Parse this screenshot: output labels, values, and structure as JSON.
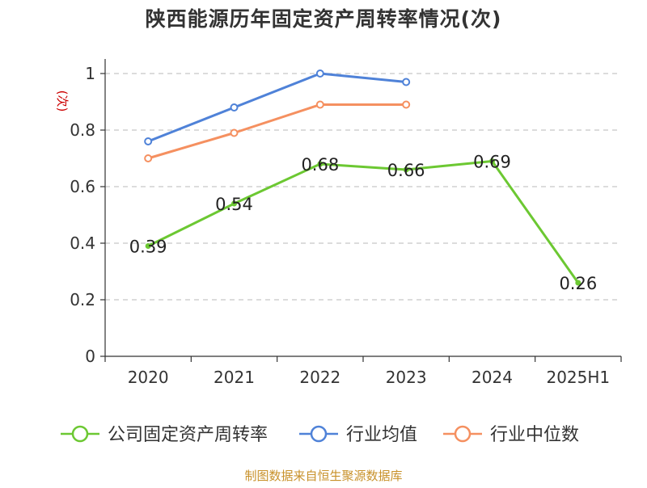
{
  "title": "陕西能源历年固定资产周转率情况(次)",
  "footer": "制图数据来自恒生聚源数据库",
  "colors": {
    "company": "#6cc832",
    "industry_avg": "#4f82d8",
    "industry_median": "#f59060",
    "grid": "#c8c8c8",
    "axis": "#333333",
    "ylabel": "#cc0000",
    "title": "#333333",
    "footer": "#c8912a"
  },
  "chart_data": {
    "type": "line",
    "title": "陕西能源历年固定资产周转率情况(次)",
    "ylabel": "(次)",
    "xlabel": "",
    "categories": [
      "2020",
      "2021",
      "2022",
      "2023",
      "2024",
      "2025H1"
    ],
    "ylim": [
      0,
      1
    ],
    "yticks": [
      0,
      0.2,
      0.4,
      0.6,
      0.8,
      1
    ],
    "ytick_labels": [
      "0",
      "0.2",
      "0.4",
      "0.6",
      "0.8",
      "1"
    ],
    "grid": true,
    "legend_position": "bottom",
    "series": [
      {
        "name": "公司固定资产周转率",
        "color": "#6cc832",
        "values": [
          0.39,
          0.54,
          0.68,
          0.66,
          0.69,
          0.26
        ],
        "labels": [
          "0.39",
          "0.54",
          "0.68",
          "0.66",
          "0.69",
          "0.26"
        ]
      },
      {
        "name": "行业均值",
        "color": "#4f82d8",
        "values": [
          0.76,
          0.88,
          1.0,
          0.97,
          null,
          null
        ]
      },
      {
        "name": "行业中位数",
        "color": "#f59060",
        "values": [
          0.7,
          0.79,
          0.89,
          0.89,
          null,
          null
        ]
      }
    ]
  }
}
